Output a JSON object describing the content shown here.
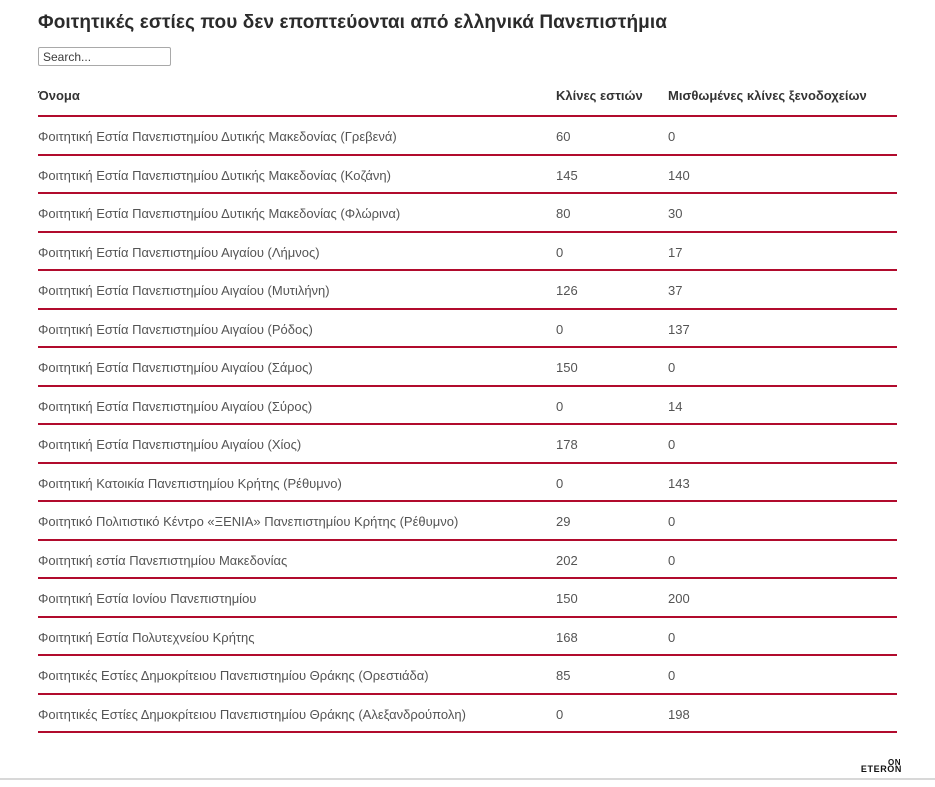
{
  "header": {
    "title": "Φοιτητικές εστίες που δεν εποπτεύονται από ελληνικά Πανεπιστήμια"
  },
  "search": {
    "placeholder": "Search..."
  },
  "chart_data": {
    "type": "table",
    "title": "Φοιτητικές εστίες που δεν εποπτεύονται από ελληνικά Πανεπιστήμια",
    "columns": [
      "Όνομα",
      "Κλίνες εστιών",
      "Μισθωμένες κλίνες ξενοδοχείων"
    ],
    "rows": [
      {
        "name": "Φοιτητική Εστία Πανεπιστημίου Δυτικής Μακεδονίας (Γρεβενά)",
        "beds": "60",
        "hotel_beds": "0"
      },
      {
        "name": "Φοιτητική Εστία Πανεπιστημίου Δυτικής Μακεδονίας (Κοζάνη)",
        "beds": "145",
        "hotel_beds": "140"
      },
      {
        "name": "Φοιτητική Εστία Πανεπιστημίου Δυτικής Μακεδονίας (Φλώρινα)",
        "beds": "80",
        "hotel_beds": "30"
      },
      {
        "name": "Φοιτητική Εστία Πανεπιστημίου Αιγαίου (Λήμνος)",
        "beds": "0",
        "hotel_beds": "17"
      },
      {
        "name": "Φοιτητική Εστία Πανεπιστημίου Αιγαίου (Μυτιλήνη)",
        "beds": "126",
        "hotel_beds": "37"
      },
      {
        "name": "Φοιτητική Εστία Πανεπιστημίου Αιγαίου (Ρόδος)",
        "beds": "0",
        "hotel_beds": "137"
      },
      {
        "name": "Φοιτητική Εστία Πανεπιστημίου Αιγαίου (Σάμος)",
        "beds": "150",
        "hotel_beds": "0"
      },
      {
        "name": "Φοιτητική Εστία Πανεπιστημίου Αιγαίου (Σύρος)",
        "beds": "0",
        "hotel_beds": "14"
      },
      {
        "name": "Φοιτητική Εστία Πανεπιστημίου Αιγαίου (Χίος)",
        "beds": "178",
        "hotel_beds": "0"
      },
      {
        "name": "Φοιτητική Κατοικία Πανεπιστημίου Κρήτης (Ρέθυμνο)",
        "beds": "0",
        "hotel_beds": "143"
      },
      {
        "name": "Φοιτητικό Πολιτιστικό Κέντρο «ΞΕΝΙΑ» Πανεπιστημίου Κρήτης (Ρέθυμνο)",
        "beds": "29",
        "hotel_beds": "0"
      },
      {
        "name": "Φοιτητική εστία Πανεπιστημίου Μακεδονίας",
        "beds": "202",
        "hotel_beds": "0"
      },
      {
        "name": "Φοιτητική Εστία Ιονίου Πανεπιστημίου",
        "beds": "150",
        "hotel_beds": "200"
      },
      {
        "name": "Φοιτητική Εστία Πολυτεχνείου Κρήτης",
        "beds": "168",
        "hotel_beds": "0"
      },
      {
        "name": "Φοιτητικές Εστίες Δημοκρίτειου Πανεπιστημίου Θράκης (Ορεστιάδα)",
        "beds": "85",
        "hotel_beds": "0"
      },
      {
        "name": "Φοιτητικές Εστίες Δημοκρίτειου Πανεπιστημίου Θράκης (Αλεξανδρούπολη)",
        "beds": "0",
        "hotel_beds": "198"
      }
    ],
    "layout": {
      "grid": "horizontal-red-rules",
      "legend": "none"
    }
  },
  "footer": {
    "logo_line1": "ON",
    "logo_line2": "ETERON"
  },
  "colors": {
    "accent_red": "#b10b2d",
    "row_text": "#545454",
    "heading_text": "#2b2b2b",
    "bottom_divider": "#d8d8d8"
  }
}
